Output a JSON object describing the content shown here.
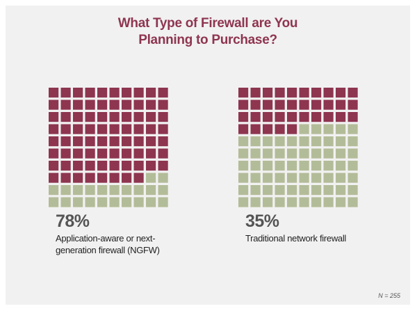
{
  "title": {
    "line1": "What Type of Firewall are You",
    "line2": "Planning to Purchase?"
  },
  "colors": {
    "selected": "#8e3550",
    "remaining": "#b3bc98",
    "background": "#f1f1f1"
  },
  "chart_data": [
    {
      "type": "waffle",
      "grid": {
        "rows": 10,
        "cols": 10
      },
      "value": 78,
      "value_label": "78%",
      "label": [
        "Application-aware or next-",
        "generation firewall (NGFW)"
      ]
    },
    {
      "type": "waffle",
      "grid": {
        "rows": 10,
        "cols": 10
      },
      "value": 35,
      "value_label": "35%",
      "label": [
        "Traditional network firewall"
      ]
    }
  ],
  "footnote": "N = 255"
}
